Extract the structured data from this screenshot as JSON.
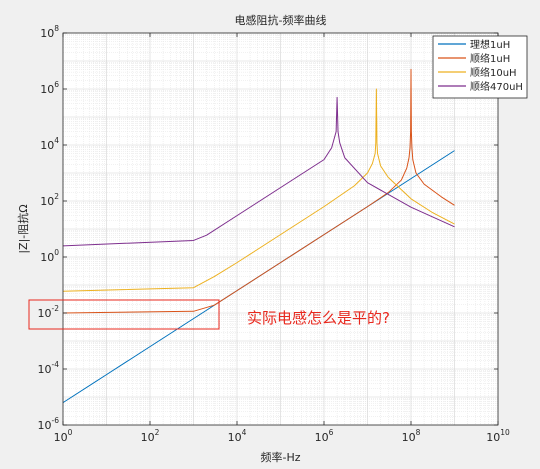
{
  "chart_data": {
    "type": "line",
    "title": "电感阻抗-频率曲线",
    "xlabel": "频率-Hz",
    "ylabel": "|Z|-阻抗Ω",
    "x_scale": "log",
    "y_scale": "log",
    "xlim": [
      1,
      10000000000
    ],
    "ylim": [
      1e-06,
      100000000
    ],
    "x_ticks": [
      {
        "value": 1,
        "base": "10",
        "exp": "0"
      },
      {
        "value": 100,
        "base": "10",
        "exp": "2"
      },
      {
        "value": 10000,
        "base": "10",
        "exp": "4"
      },
      {
        "value": 1000000,
        "base": "10",
        "exp": "6"
      },
      {
        "value": 100000000,
        "base": "10",
        "exp": "8"
      },
      {
        "value": 10000000000,
        "base": "10",
        "exp": "10"
      }
    ],
    "y_ticks": [
      {
        "value": 1e-06,
        "base": "10",
        "exp": "-6"
      },
      {
        "value": 0.0001,
        "base": "10",
        "exp": "-4"
      },
      {
        "value": 0.01,
        "base": "10",
        "exp": "-2"
      },
      {
        "value": 1,
        "base": "10",
        "exp": "0"
      },
      {
        "value": 100,
        "base": "10",
        "exp": "2"
      },
      {
        "value": 10000,
        "base": "10",
        "exp": "4"
      },
      {
        "value": 1000000,
        "base": "10",
        "exp": "6"
      },
      {
        "value": 100000000,
        "base": "10",
        "exp": "8"
      }
    ],
    "grid": true,
    "minor_grid": true,
    "legend_position": "top-right",
    "series": [
      {
        "name": "理想1uH",
        "color": "#0072BD",
        "x": [
          1,
          10,
          100,
          1000,
          10000,
          100000,
          1000000,
          10000000,
          100000000,
          1000000000
        ],
        "y": [
          6.3e-06,
          6.3e-05,
          0.00063,
          0.0063,
          0.063,
          0.63,
          6.3,
          63,
          630,
          6300
        ]
      },
      {
        "name": "顺络1uH",
        "color": "#D95319",
        "x": [
          1,
          1000,
          3000,
          10000,
          100000,
          1000000,
          10000000,
          30000000,
          60000000,
          80000000,
          90000000,
          95000000,
          98000000,
          100000000,
          102000000,
          105000000,
          110000000,
          130000000,
          200000000,
          500000000,
          1000000000
        ],
        "y": [
          0.01,
          0.0115,
          0.019,
          0.063,
          0.63,
          6.3,
          63,
          200,
          560,
          1500,
          3500,
          8000,
          30000,
          5000000,
          30000,
          8000,
          3000,
          1000,
          400,
          140,
          70
        ]
      },
      {
        "name": "顺络10uH",
        "color": "#EDB120",
        "x": [
          1,
          1000,
          3000,
          10000,
          100000,
          1000000,
          5000000,
          10000000,
          13000000,
          15000000,
          15500000,
          16000000,
          16500000,
          17000000,
          20000000,
          30000000,
          100000000,
          300000000,
          1000000000
        ],
        "y": [
          0.06,
          0.08,
          0.2,
          0.63,
          6.3,
          63,
          350,
          1000,
          2200,
          5000,
          12000,
          1000000,
          12000,
          5000,
          1800,
          700,
          120,
          40,
          15
        ]
      },
      {
        "name": "顺络470uH",
        "color": "#7E2F8E",
        "x": [
          1,
          1000,
          2000,
          10000,
          100000,
          1000000,
          1500000,
          1900000,
          2000000,
          2100000,
          2300000,
          3000000,
          10000000,
          100000000,
          1000000000
        ],
        "y": [
          2.5,
          3.9,
          6,
          30,
          300,
          3000,
          8000,
          30000,
          500000,
          30000,
          12000,
          3500,
          450,
          60,
          12
        ]
      }
    ]
  },
  "annotation": {
    "text": "实际电感怎么是平的?",
    "color": "#e8281e"
  }
}
